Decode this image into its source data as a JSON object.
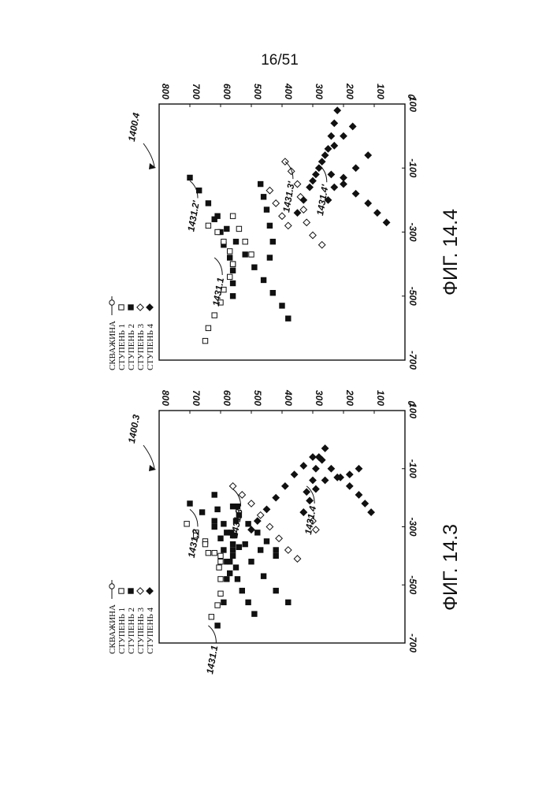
{
  "page_number": "16/51",
  "chart_data": [
    {
      "type": "scatter",
      "figure": "ФИГ. 14.3",
      "ref": "1400.3",
      "xlim": [
        -700,
        100
      ],
      "ylim": [
        0,
        800
      ],
      "xticks": [
        "-700",
        "-500",
        "-300",
        "-100",
        "100"
      ],
      "yticks": [
        "0",
        "100",
        "200",
        "300",
        "400",
        "500",
        "600",
        "700",
        "800"
      ],
      "legend": [
        {
          "label": "СКВАЖИНА",
          "marker": "line-circle"
        },
        {
          "label": "СТУПЕНЬ 1",
          "marker": "open-square"
        },
        {
          "label": "СТУПЕНЬ 2",
          "marker": "filled-square"
        },
        {
          "label": "СТУПЕНЬ 3",
          "marker": "open-diamond"
        },
        {
          "label": "СТУПЕНЬ 4",
          "marker": "filled-diamond"
        }
      ],
      "annotations": [
        {
          "text": "1431.1",
          "at": [
            -640,
            640
          ]
        },
        {
          "text": "1431.2",
          "at": [
            -240,
            700
          ]
        },
        {
          "text": "1431.3",
          "at": [
            -170,
            560
          ]
        },
        {
          "text": "1431.4",
          "at": [
            -160,
            320
          ]
        }
      ],
      "series": [
        {
          "marker": "filled-square",
          "points": [
            [
              -640,
              610
            ],
            [
              -560,
              590
            ],
            [
              -480,
              580
            ],
            [
              -420,
              570
            ],
            [
              -380,
              560
            ],
            [
              -330,
              555
            ],
            [
              -280,
              550
            ],
            [
              -230,
              545
            ]
          ]
        },
        {
          "marker": "filled-square",
          "points": [
            [
              -600,
              490
            ],
            [
              -560,
              510
            ],
            [
              -520,
              530
            ],
            [
              -480,
              545
            ],
            [
              -440,
              550
            ],
            [
              -400,
              560
            ],
            [
              -360,
              560
            ],
            [
              -320,
              565
            ]
          ]
        },
        {
          "marker": "filled-square",
          "points": [
            [
              -220,
              700
            ],
            [
              -250,
              660
            ],
            [
              -280,
              620
            ],
            [
              -320,
              580
            ],
            [
              -370,
              540
            ],
            [
              -420,
              500
            ],
            [
              -470,
              460
            ],
            [
              -520,
              420
            ],
            [
              -560,
              380
            ]
          ]
        },
        {
          "marker": "filled-square",
          "points": [
            [
              -300,
              620
            ],
            [
              -340,
              600
            ],
            [
              -380,
              590
            ],
            [
              -420,
              580
            ],
            [
              -460,
              570
            ]
          ]
        },
        {
          "marker": "filled-square",
          "points": [
            [
              -400,
              420
            ],
            [
              -380,
              470
            ],
            [
              -360,
              520
            ],
            [
              -330,
              560
            ],
            [
              -290,
              590
            ],
            [
              -240,
              610
            ],
            [
              -190,
              620
            ]
          ]
        },
        {
          "marker": "filled-square",
          "points": [
            [
              -380,
              420
            ],
            [
              -350,
              450
            ],
            [
              -320,
              480
            ],
            [
              -290,
              510
            ],
            [
              -260,
              540
            ],
            [
              -230,
              560
            ]
          ]
        },
        {
          "marker": "open-square",
          "points": [
            [
              -610,
              630
            ],
            [
              -570,
              610
            ],
            [
              -530,
              600
            ],
            [
              -480,
              600
            ],
            [
              -440,
              605
            ],
            [
              -400,
              600
            ]
          ]
        },
        {
          "marker": "open-square",
          "points": [
            [
              -290,
              710
            ],
            [
              -320,
              680
            ],
            [
              -350,
              650
            ],
            [
              -390,
              620
            ],
            [
              -420,
              600
            ]
          ]
        },
        {
          "marker": "open-square",
          "points": [
            [
              -330,
              680
            ],
            [
              -360,
              650
            ],
            [
              -390,
              640
            ]
          ]
        },
        {
          "marker": "open-diamond",
          "points": [
            [
              -160,
              560
            ],
            [
              -190,
              530
            ],
            [
              -220,
              500
            ],
            [
              -260,
              470
            ],
            [
              -300,
              440
            ],
            [
              -340,
              410
            ],
            [
              -380,
              380
            ],
            [
              -410,
              350
            ]
          ]
        },
        {
          "marker": "open-diamond",
          "points": [
            [
              -250,
              330
            ],
            [
              -280,
              300
            ],
            [
              -310,
              290
            ]
          ]
        },
        {
          "marker": "filled-diamond",
          "points": [
            [
              -60,
              300
            ],
            [
              -90,
              330
            ],
            [
              -120,
              360
            ],
            [
              -160,
              390
            ],
            [
              -200,
              420
            ],
            [
              -240,
              450
            ],
            [
              -280,
              480
            ],
            [
              -310,
              500
            ]
          ]
        },
        {
          "marker": "filled-diamond",
          "points": [
            [
              -100,
              150
            ],
            [
              -120,
              180
            ],
            [
              -130,
              220
            ],
            [
              -140,
              260
            ],
            [
              -170,
              290
            ],
            [
              -210,
              310
            ],
            [
              -250,
              330
            ]
          ]
        },
        {
          "marker": "filled-diamond",
          "points": [
            [
              -250,
              110
            ],
            [
              -220,
              130
            ],
            [
              -190,
              150
            ],
            [
              -160,
              180
            ],
            [
              -130,
              210
            ],
            [
              -100,
              240
            ],
            [
              -70,
              270
            ]
          ]
        },
        {
          "marker": "filled-diamond",
          "points": [
            [
              -30,
              260
            ],
            [
              -60,
              280
            ],
            [
              -100,
              290
            ],
            [
              -140,
              300
            ],
            [
              -180,
              320
            ]
          ]
        }
      ]
    },
    {
      "type": "scatter",
      "figure": "ФИГ. 14.4",
      "ref": "1400.4",
      "xlim": [
        -700,
        100
      ],
      "ylim": [
        0,
        800
      ],
      "xticks": [
        "-700",
        "-500",
        "-300",
        "-100",
        "100"
      ],
      "yticks": [
        "0",
        "100",
        "200",
        "300",
        "400",
        "500",
        "600",
        "700",
        "800"
      ],
      "legend": [
        {
          "label": "СКВАЖИНА",
          "marker": "line-circle"
        },
        {
          "label": "СТУПЕНЬ 1",
          "marker": "open-square"
        },
        {
          "label": "СТУПЕНЬ 2",
          "marker": "filled-square"
        },
        {
          "label": "СТУПЕНЬ 3",
          "marker": "open-diamond"
        },
        {
          "label": "СТУПЕНЬ 4",
          "marker": "filled-diamond"
        }
      ],
      "annotations": [
        {
          "text": "1431.1",
          "at": [
            -380,
            620
          ]
        },
        {
          "text": "1431.2'",
          "at": [
            -140,
            700
          ]
        },
        {
          "text": "1431.3'",
          "at": [
            -80,
            390
          ]
        },
        {
          "text": "1431.4'",
          "at": [
            -90,
            280
          ]
        }
      ],
      "series": [
        {
          "marker": "filled-square",
          "points": [
            [
              -130,
              700
            ],
            [
              -170,
              670
            ],
            [
              -210,
              640
            ],
            [
              -250,
              610
            ],
            [
              -290,
              580
            ],
            [
              -330,
              550
            ],
            [
              -370,
              520
            ],
            [
              -410,
              490
            ],
            [
              -450,
              460
            ],
            [
              -490,
              430
            ],
            [
              -530,
              400
            ],
            [
              -570,
              380
            ]
          ]
        },
        {
          "marker": "filled-square",
          "points": [
            [
              -150,
              470
            ],
            [
              -190,
              460
            ],
            [
              -230,
              450
            ],
            [
              -280,
              440
            ],
            [
              -330,
              430
            ],
            [
              -380,
              440
            ]
          ]
        },
        {
          "marker": "filled-square",
          "points": [
            [
              -260,
              620
            ],
            [
              -300,
              600
            ],
            [
              -340,
              590
            ],
            [
              -380,
              570
            ],
            [
              -420,
              560
            ],
            [
              -460,
              560
            ],
            [
              -500,
              560
            ]
          ]
        },
        {
          "marker": "open-square",
          "points": [
            [
              -640,
              650
            ],
            [
              -600,
              640
            ],
            [
              -560,
              620
            ],
            [
              -520,
              600
            ],
            [
              -480,
              590
            ],
            [
              -440,
              570
            ],
            [
              -400,
              560
            ]
          ]
        },
        {
          "marker": "open-square",
          "points": [
            [
              -280,
              640
            ],
            [
              -300,
              610
            ],
            [
              -330,
              590
            ],
            [
              -360,
              570
            ],
            [
              -400,
              560
            ]
          ]
        },
        {
          "marker": "open-square",
          "points": [
            [
              -250,
              560
            ],
            [
              -290,
              540
            ],
            [
              -330,
              520
            ],
            [
              -370,
              500
            ]
          ]
        },
        {
          "marker": "open-diamond",
          "points": [
            [
              -80,
              390
            ],
            [
              -110,
              370
            ],
            [
              -150,
              350
            ],
            [
              -190,
              340
            ],
            [
              -230,
              330
            ],
            [
              -270,
              320
            ],
            [
              -310,
              300
            ],
            [
              -340,
              270
            ]
          ]
        },
        {
          "marker": "open-diamond",
          "points": [
            [
              -170,
              440
            ],
            [
              -210,
              420
            ],
            [
              -250,
              400
            ],
            [
              -280,
              380
            ]
          ]
        },
        {
          "marker": "filled-diamond",
          "points": [
            [
              80,
              220
            ],
            [
              40,
              230
            ],
            [
              0,
              240
            ],
            [
              -40,
              250
            ],
            [
              -80,
              270
            ],
            [
              -120,
              290
            ],
            [
              -160,
              310
            ],
            [
              -200,
              330
            ],
            [
              -240,
              350
            ]
          ]
        },
        {
          "marker": "filled-diamond",
          "points": [
            [
              -60,
              120
            ],
            [
              -100,
              160
            ],
            [
              -130,
              200
            ],
            [
              -160,
              230
            ],
            [
              -200,
              250
            ]
          ]
        },
        {
          "marker": "filled-diamond",
          "points": [
            [
              -270,
              60
            ],
            [
              -240,
              90
            ],
            [
              -210,
              120
            ],
            [
              -180,
              160
            ],
            [
              -150,
              200
            ],
            [
              -120,
              240
            ]
          ]
        },
        {
          "marker": "filled-diamond",
          "points": [
            [
              30,
              170
            ],
            [
              0,
              200
            ],
            [
              -30,
              230
            ],
            [
              -60,
              260
            ],
            [
              -100,
              280
            ],
            [
              -140,
              300
            ]
          ]
        }
      ]
    }
  ]
}
